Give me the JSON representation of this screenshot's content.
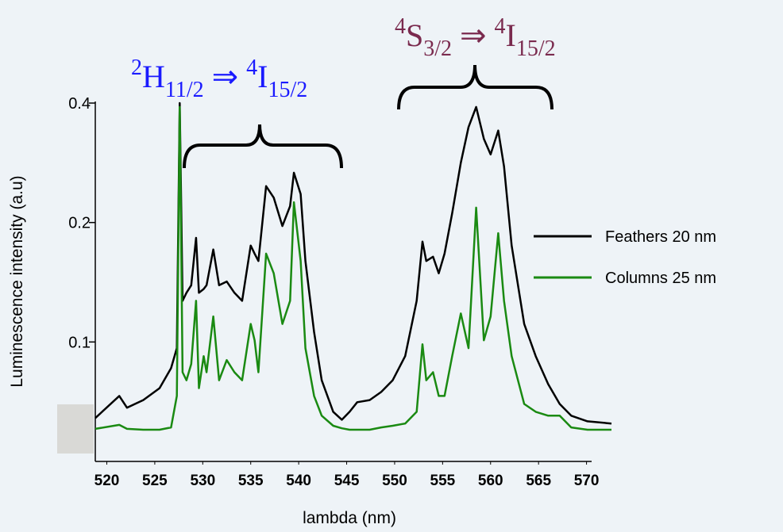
{
  "chart_data": {
    "type": "line",
    "y_label": "Luminescence intensity (a.u)",
    "x_label": "lambda (nm)",
    "log_y": true,
    "legend": "right",
    "xlim": [
      518.8,
      572.6
    ],
    "ylim": [
      0.05,
      0.4
    ],
    "xticks": [
      520,
      525,
      530,
      535,
      540,
      545,
      550,
      555,
      560,
      565,
      570
    ],
    "yticks": [
      0.1,
      0.2,
      0.4
    ],
    "x": [
      518.8,
      521.3,
      522.1,
      523.8,
      525.5,
      526.7,
      527.3,
      527.6,
      527.9,
      528.3,
      528.8,
      529.3,
      529.6,
      530.1,
      530.4,
      531.1,
      531.7,
      532.5,
      533.3,
      534.1,
      535.0,
      535.4,
      535.8,
      536.6,
      537.4,
      538.3,
      539.1,
      539.5,
      540.2,
      540.7,
      541.6,
      542.4,
      543.6,
      544.5,
      545.3,
      546.1,
      547.4,
      548.6,
      549.8,
      551.1,
      552.3,
      552.9,
      553.3,
      554.0,
      554.6,
      555.2,
      556.0,
      556.9,
      557.7,
      558.5,
      559.3,
      560.0,
      560.8,
      561.4,
      562.2,
      563.5,
      564.7,
      566.0,
      567.2,
      568.4,
      570.1,
      572.6
    ],
    "series": [
      {
        "name": "Feathers 20 nm",
        "color": "#000000",
        "values": [
          0.0643,
          0.0731,
          0.0683,
          0.0714,
          0.0765,
          0.0859,
          0.0965,
          0.4,
          0.127,
          0.133,
          0.139,
          0.183,
          0.133,
          0.136,
          0.139,
          0.171,
          0.139,
          0.142,
          0.133,
          0.127,
          0.175,
          0.167,
          0.16,
          0.247,
          0.231,
          0.196,
          0.22,
          0.267,
          0.236,
          0.16,
          0.106,
          0.0801,
          0.0667,
          0.0637,
          0.0667,
          0.0705,
          0.0714,
          0.0748,
          0.0801,
          0.0921,
          0.127,
          0.179,
          0.16,
          0.164,
          0.149,
          0.167,
          0.211,
          0.283,
          0.348,
          0.391,
          0.325,
          0.297,
          0.341,
          0.277,
          0.175,
          0.111,
          0.0921,
          0.0783,
          0.0698,
          0.0652,
          0.0631,
          0.0623
        ]
      },
      {
        "name": "Columns 25 nm",
        "color": "#1a8a12",
        "values": [
          0.0604,
          0.0618,
          0.0604,
          0.0601,
          0.0601,
          0.0609,
          0.0731,
          0.391,
          0.0839,
          0.0801,
          0.088,
          0.127,
          0.0765,
          0.0921,
          0.0839,
          0.116,
          0.0801,
          0.09,
          0.0839,
          0.0801,
          0.111,
          0.101,
          0.0839,
          0.167,
          0.149,
          0.111,
          0.127,
          0.225,
          0.16,
          0.0965,
          0.0731,
          0.0652,
          0.0615,
          0.0606,
          0.0601,
          0.0601,
          0.0601,
          0.0609,
          0.0615,
          0.0623,
          0.0667,
          0.0987,
          0.0801,
          0.0839,
          0.0731,
          0.0731,
          0.0921,
          0.118,
          0.0965,
          0.218,
          0.101,
          0.116,
          0.188,
          0.127,
          0.0921,
          0.0698,
          0.0667,
          0.0652,
          0.0652,
          0.0609,
          0.0601,
          0.0601
        ]
      }
    ],
    "annotations": [
      {
        "color": "#1a1aff",
        "parts": [
          {
            "text": "2",
            "pos": "sup"
          },
          {
            "text": "H",
            "pos": "base"
          },
          {
            "text": "11/2",
            "pos": "sub"
          },
          {
            "text": "⇒",
            "pos": "base"
          },
          {
            "text": "4",
            "pos": "sup"
          },
          {
            "text": "I",
            "pos": "base"
          },
          {
            "text": "15/2",
            "pos": "sub"
          }
        ]
      },
      {
        "color": "#7a2a4e",
        "parts": [
          {
            "text": "4",
            "pos": "sup"
          },
          {
            "text": "S",
            "pos": "base"
          },
          {
            "text": "3/2",
            "pos": "sub"
          },
          {
            "text": "⇒",
            "pos": "base"
          },
          {
            "text": "4",
            "pos": "sup"
          },
          {
            "text": "I",
            "pos": "base"
          },
          {
            "text": "15/2",
            "pos": "sub"
          }
        ]
      }
    ]
  }
}
